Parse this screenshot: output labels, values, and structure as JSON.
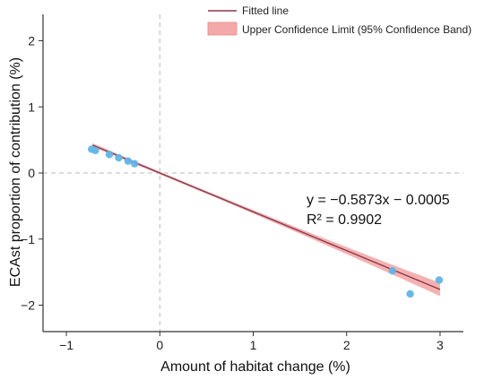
{
  "chart_data": {
    "type": "scatter",
    "xlabel": "Amount of habitat change (%)",
    "ylabel": "ECAst proportion of contribution (%)",
    "xlim": [
      -1.25,
      3.25
    ],
    "ylim": [
      -2.4,
      2.4
    ],
    "x_ticks": [
      -1,
      0,
      1,
      2,
      3
    ],
    "x_tick_labels": [
      "−1",
      "0",
      "1",
      "2",
      "3"
    ],
    "y_ticks": [
      -2,
      -1,
      0,
      1,
      2
    ],
    "y_tick_labels": [
      "−2",
      "−1",
      "0",
      "1",
      "2"
    ],
    "reference_lines": {
      "x": 0,
      "y": 0
    },
    "legend_position": "top-right",
    "legend": [
      {
        "label": "Fitted line",
        "kind": "line",
        "color": "#8b3a4a"
      },
      {
        "label": "Upper Confidence Limit (95% Confidence Band)",
        "kind": "band",
        "color": "#f4a9a8"
      }
    ],
    "fit": {
      "slope": -0.5873,
      "intercept": -0.0005,
      "x_range": [
        -0.72,
        3.0
      ],
      "band_halfwidth_min": 0.02,
      "band_halfwidth_max": 0.1,
      "band_center_x": 0.2,
      "line_color": "#8b3a4a",
      "band_color": "#f4a9a8"
    },
    "points": [
      {
        "x": -0.73,
        "y": 0.36
      },
      {
        "x": -0.69,
        "y": 0.34
      },
      {
        "x": -0.54,
        "y": 0.28
      },
      {
        "x": -0.44,
        "y": 0.23
      },
      {
        "x": -0.34,
        "y": 0.18
      },
      {
        "x": -0.27,
        "y": 0.14
      },
      {
        "x": 2.49,
        "y": -1.48
      },
      {
        "x": 2.68,
        "y": -1.83
      },
      {
        "x": 2.99,
        "y": -1.62
      }
    ],
    "point_color": "#5eb6e8",
    "annotations": {
      "equation": "y = −0.5873x − 0.0005",
      "r_squared": "R² = 0.9902"
    }
  }
}
